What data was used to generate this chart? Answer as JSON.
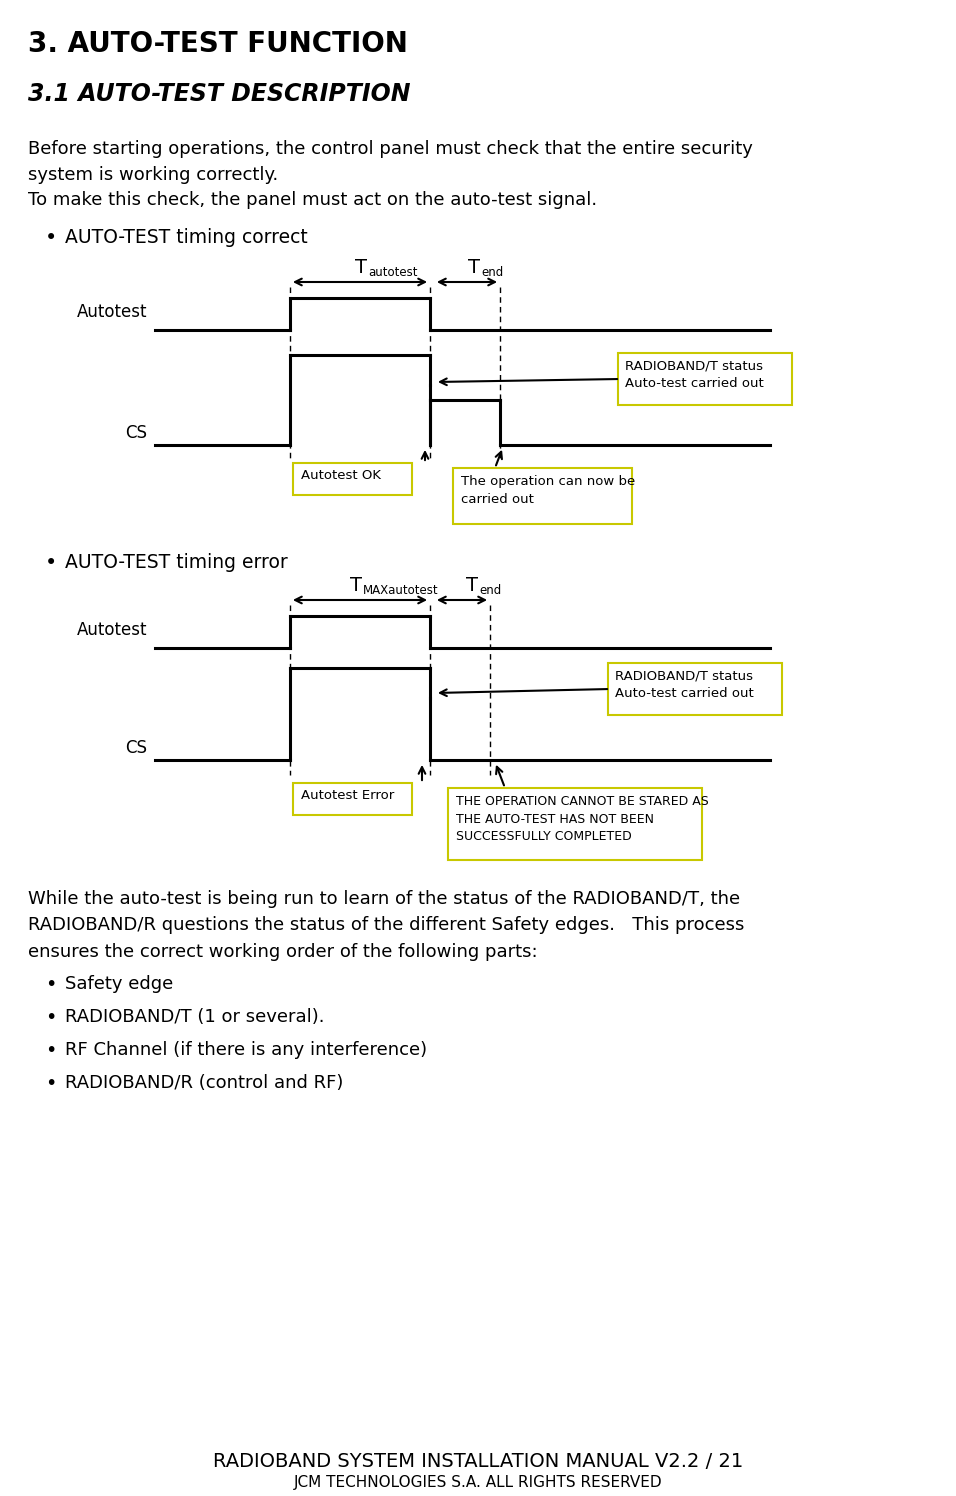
{
  "title": "3. AUTO-TEST FUNCTION",
  "subtitle": "3.1 AUTO-TEST DESCRIPTION",
  "intro_text": "Before starting operations, the control panel must check that the entire security\nsystem is working correctly.\nTo make this check, the panel must act on the auto-test signal.",
  "bullet1_title": "AUTO-TEST timing correct",
  "bullet2_title": "AUTO-TEST timing error",
  "bg_color": "#ffffff",
  "text_color": "#000000",
  "box_border_color": "#c8c800",
  "diagram1": {
    "autotest_label": "Autotest",
    "cs_label": "CS",
    "t_autotest_label": "T",
    "t_autotest_sub": "autotest",
    "t_end_label": "T",
    "t_end_sub": "end",
    "radioband_label": "RADIOBAND/T status\nAuto-test carried out",
    "autotest_ok_label": "Autotest OK",
    "operation_ok_label": "The operation can now be\ncarried out"
  },
  "diagram2": {
    "autotest_label": "Autotest",
    "cs_label": "CS",
    "t_max_label": "T",
    "t_max_sub": "MAXautotest",
    "t_end_label": "T",
    "t_end_sub": "end",
    "radioband_label": "RADIOBAND/T status\nAuto-test carried out",
    "autotest_error_label": "Autotest Error",
    "operation_error_label": "THE OPERATION CANNOT BE STARED AS\nTHE AUTO-TEST HAS NOT BEEN\nSUCCESSFULLY COMPLETED"
  },
  "bottom_text1": "While the auto-test is being run to learn of the status of the RADIOBAND/T, the\nRADIOBAND/R questions the status of the different Safety edges.   This process\nensures the correct working order of the following parts:",
  "bullets": [
    "Safety edge",
    "RADIOBAND/T (1 or several).",
    "RF Channel (if there is any interference)",
    "RADIOBAND/R (control and RF)"
  ],
  "footer1": "RADIOBAND SYSTEM INSTALLATION MANUAL V2.2 / 21",
  "footer2": "JCM TECHNOLOGIES S.A. ALL RIGHTS RESERVED"
}
